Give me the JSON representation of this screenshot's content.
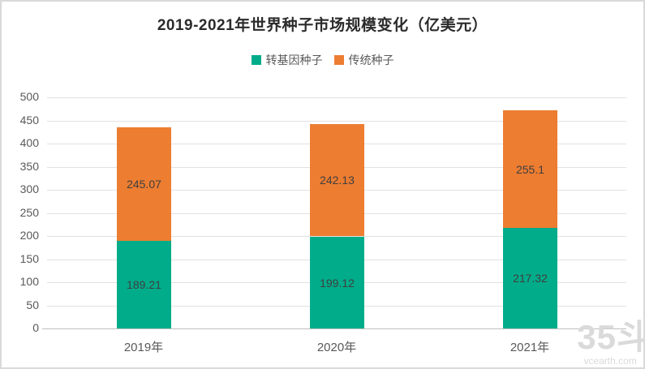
{
  "title": "2019-2021年世界种子市场规模变化（亿美元）",
  "watermark": {
    "brand": "35斗",
    "site": "vcearth.com"
  },
  "colors": {
    "gm_seed": "#00AC8A",
    "traditional_seed": "#ED7D31",
    "axis_text": "#595959",
    "data_label": "#3f3f3f",
    "gridline": "#e2e2e2",
    "baseline": "#bfbfbf",
    "watermark": "#dadada"
  },
  "chart_data": {
    "type": "bar",
    "stacked": true,
    "title": "2019-2021年世界种子市场规模变化（亿美元）",
    "categories": [
      "2019年",
      "2020年",
      "2021年"
    ],
    "series": [
      {
        "name": "转基因种子",
        "color": "#00AC8A",
        "values": [
          189.21,
          199.12,
          217.32
        ]
      },
      {
        "name": "传统种子",
        "color": "#ED7D31",
        "values": [
          245.07,
          242.13,
          255.1
        ]
      }
    ],
    "data_labels": {
      "转基因种子": [
        "189.21",
        "199.12",
        "217.32"
      ],
      "传统种子": [
        "245.07",
        "242.13",
        "255.1"
      ]
    },
    "xlabel": "",
    "ylabel": "",
    "ylim": [
      0,
      500
    ],
    "ytick_step": 50,
    "grid": true,
    "legend_position": "top"
  }
}
